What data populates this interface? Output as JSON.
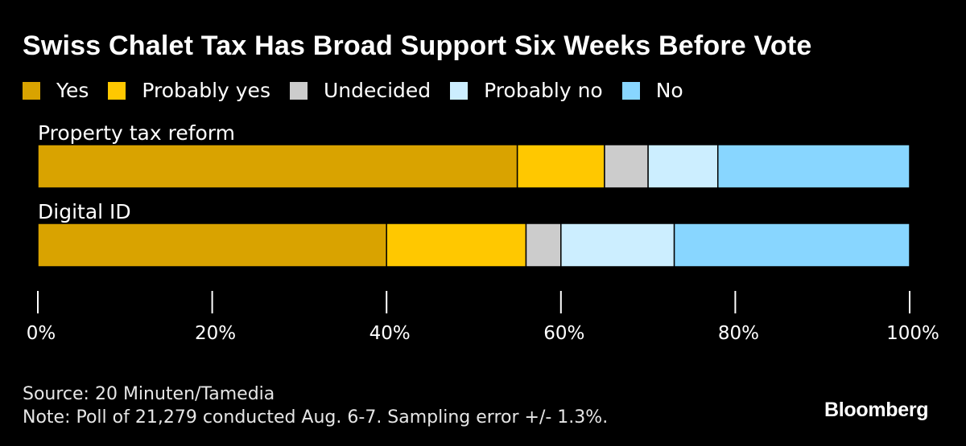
{
  "chart_data": {
    "type": "bar",
    "orientation": "horizontal",
    "stacked": true,
    "title": "Swiss Chalet Tax Has Broad Support Six Weeks Before Vote",
    "categories": [
      "Property tax reform",
      "Digital ID"
    ],
    "series": [
      {
        "name": "Yes",
        "color": "#d9a300",
        "values": [
          55,
          40
        ]
      },
      {
        "name": "Probably yes",
        "color": "#ffc800",
        "values": [
          10,
          16
        ]
      },
      {
        "name": "Undecided",
        "color": "#cccccc",
        "values": [
          5,
          4
        ]
      },
      {
        "name": "Probably no",
        "color": "#cceeff",
        "values": [
          8,
          13
        ]
      },
      {
        "name": "No",
        "color": "#88d6ff",
        "values": [
          22,
          27
        ]
      }
    ],
    "xlim": [
      0,
      100
    ],
    "xticks": [
      0,
      20,
      40,
      60,
      80,
      100
    ],
    "xtick_labels": [
      "0%",
      "20%",
      "40%",
      "60%",
      "80%",
      "100%"
    ],
    "legend_position": "top",
    "grid": false
  },
  "footer": {
    "source": "Source: 20 Minuten/Tamedia",
    "note": "Note: Poll of 21,279 conducted Aug. 6-7. Sampling error +/- 1.3%."
  },
  "brand": "Bloomberg"
}
